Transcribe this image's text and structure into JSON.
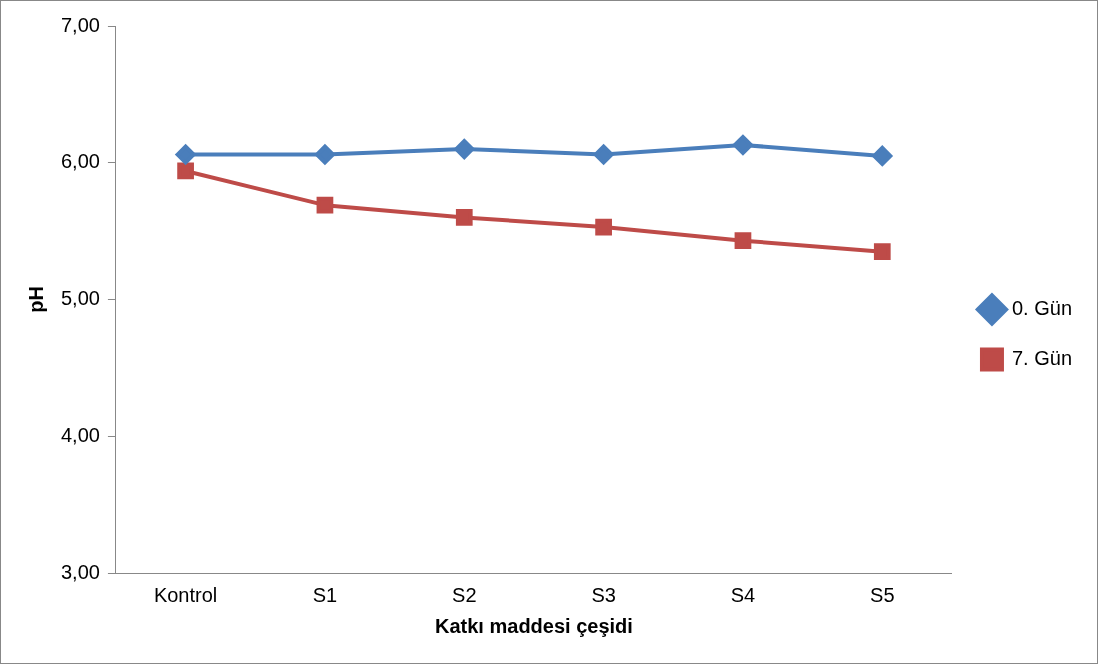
{
  "chart_data": {
    "type": "line",
    "xlabel": "Katkı maddesi çeşidi",
    "ylabel": "pH",
    "categories": [
      "Kontrol",
      "S1",
      "S2",
      "S3",
      "S4",
      "S5"
    ],
    "series": [
      {
        "name": "0. Gün",
        "color": "#4a7ebb",
        "marker": "diamond",
        "values": [
          6.06,
          6.06,
          6.1,
          6.06,
          6.13,
          6.05
        ]
      },
      {
        "name": "7. Gün",
        "color": "#be4b48",
        "marker": "square",
        "values": [
          5.94,
          5.69,
          5.6,
          5.53,
          5.43,
          5.35
        ]
      }
    ],
    "ylim": [
      3,
      7
    ],
    "yticks": [
      {
        "value": 3,
        "label": "3,00"
      },
      {
        "value": 4,
        "label": "4,00"
      },
      {
        "value": 5,
        "label": "5,00"
      },
      {
        "value": 6,
        "label": "6,00"
      },
      {
        "value": 7,
        "label": "7,00"
      }
    ],
    "grid": false,
    "legend": "right",
    "line_style": "solid"
  }
}
